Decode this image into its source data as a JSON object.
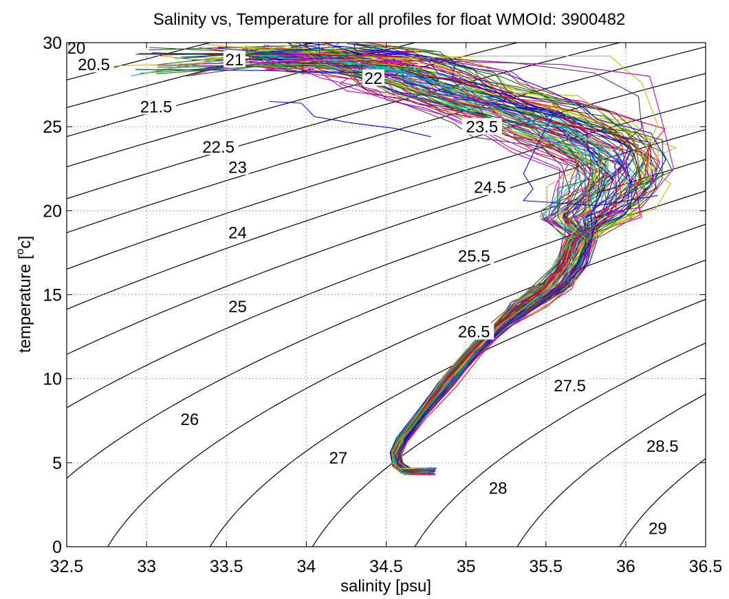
{
  "chart_data": {
    "type": "line",
    "title": "Salinity vs, Temperature for all profiles for float WMOId: 3900482",
    "xlabel": "salinity [psu]",
    "ylabel_main": "temperature [",
    "ylabel_sup": "o",
    "ylabel_end": "c]",
    "xlim": [
      32.5,
      36.5
    ],
    "ylim": [
      0,
      30
    ],
    "x_ticks": [
      "32.5",
      "33",
      "33.5",
      "34",
      "34.5",
      "35",
      "35.5",
      "36",
      "36.5"
    ],
    "y_ticks": [
      "0",
      "5",
      "10",
      "15",
      "20",
      "25",
      "30"
    ],
    "grid": true,
    "density_contours": {
      "levels": [
        20,
        20.5,
        21,
        21.5,
        22,
        22.5,
        23,
        23.5,
        24,
        24.5,
        25,
        25.5,
        26,
        26.5,
        27,
        27.5,
        28,
        28.5,
        29
      ],
      "labels": [
        {
          "text": "20",
          "s": 32.56,
          "t": 29.6
        },
        {
          "text": "20.5",
          "s": 32.67,
          "t": 28.6
        },
        {
          "text": "21",
          "s": 33.55,
          "t": 28.9
        },
        {
          "text": "21.5",
          "s": 33.06,
          "t": 26.1
        },
        {
          "text": "22",
          "s": 34.42,
          "t": 27.8
        },
        {
          "text": "22.5",
          "s": 33.45,
          "t": 23.7
        },
        {
          "text": "23",
          "s": 33.57,
          "t": 22.5
        },
        {
          "text": "23.5",
          "s": 35.1,
          "t": 24.9
        },
        {
          "text": "24",
          "s": 33.57,
          "t": 18.6
        },
        {
          "text": "24.5",
          "s": 35.15,
          "t": 21.3
        },
        {
          "text": "25",
          "s": 33.57,
          "t": 14.2
        },
        {
          "text": "25.5",
          "s": 35.05,
          "t": 17.2
        },
        {
          "text": "26",
          "s": 33.27,
          "t": 7.5
        },
        {
          "text": "26.5",
          "s": 35.05,
          "t": 12.7
        },
        {
          "text": "27",
          "s": 34.2,
          "t": 5.2
        },
        {
          "text": "27.5",
          "s": 35.65,
          "t": 9.5
        },
        {
          "text": "28",
          "s": 35.2,
          "t": 3.4
        },
        {
          "text": "28.5",
          "s": 36.23,
          "t": 5.9
        },
        {
          "text": "29",
          "s": 36.2,
          "t": 1.0
        }
      ]
    },
    "colors": [
      "#0000ff",
      "#008000",
      "#ff0000",
      "#00bfbf",
      "#bf00bf",
      "#bfbf00",
      "#404040"
    ],
    "core_path": [
      [
        34.78,
        4.5
      ],
      [
        34.62,
        4.5
      ],
      [
        34.57,
        4.9
      ],
      [
        34.56,
        5.5
      ],
      [
        34.6,
        6.4
      ],
      [
        34.72,
        7.8
      ],
      [
        34.88,
        9.7
      ],
      [
        35.05,
        11.6
      ],
      [
        35.22,
        13.2
      ],
      [
        35.4,
        14.5
      ],
      [
        35.55,
        15.5
      ],
      [
        35.65,
        16.8
      ],
      [
        35.72,
        18.3
      ],
      [
        35.76,
        19.6
      ],
      [
        35.84,
        20.7
      ],
      [
        35.94,
        21.8
      ],
      [
        35.92,
        23.0
      ],
      [
        35.78,
        24.0
      ],
      [
        35.55,
        25.1
      ],
      [
        35.28,
        26.0
      ],
      [
        35.0,
        26.8
      ],
      [
        34.75,
        27.7
      ],
      [
        34.55,
        28.5
      ],
      [
        34.3,
        29.0
      ],
      [
        34.0,
        29.3
      ],
      [
        33.8,
        29.4
      ]
    ],
    "profile_count": 90,
    "outlier_profiles": [
      {
        "color": "#0000ff",
        "points": [
          [
            33.77,
            26.5
          ],
          [
            33.97,
            26.4
          ],
          [
            34.05,
            25.6
          ],
          [
            34.3,
            25.2
          ],
          [
            34.55,
            24.9
          ],
          [
            34.78,
            24.4
          ]
        ]
      },
      {
        "color": "#0000ff",
        "points": [
          [
            32.93,
            28.4
          ],
          [
            33.7,
            28.35
          ],
          [
            34.4,
            28.2
          ],
          [
            34.9,
            27.8
          ],
          [
            35.25,
            26.9
          ],
          [
            35.55,
            25.8
          ],
          [
            35.45,
            24.0
          ],
          [
            35.36,
            22.2
          ],
          [
            35.42,
            21.3
          ],
          [
            35.36,
            20.6
          ],
          [
            35.82,
            20.3
          ],
          [
            36.2,
            20.9
          ]
        ]
      },
      {
        "color": "#404040",
        "points": [
          [
            32.93,
            29.3
          ],
          [
            33.8,
            29.3
          ],
          [
            34.6,
            29.2
          ],
          [
            35.3,
            28.8
          ],
          [
            35.8,
            28.2
          ],
          [
            36.08,
            26.8
          ],
          [
            36.1,
            24.9
          ],
          [
            35.92,
            23.5
          ]
        ]
      },
      {
        "color": "#bfbf00",
        "points": [
          [
            32.75,
            28.6
          ],
          [
            33.5,
            28.8
          ],
          [
            34.4,
            29.0
          ],
          [
            35.1,
            29.2
          ],
          [
            35.9,
            29.2
          ],
          [
            36.1,
            27.6
          ],
          [
            36.2,
            25.1
          ],
          [
            36.08,
            22.8
          ],
          [
            35.95,
            20.9
          ]
        ]
      },
      {
        "color": "#bf00bf",
        "points": [
          [
            33.2,
            28.7
          ],
          [
            34.0,
            28.9
          ],
          [
            34.9,
            28.9
          ],
          [
            35.6,
            28.7
          ],
          [
            36.15,
            28.0
          ],
          [
            36.22,
            25.6
          ],
          [
            36.3,
            22.5
          ],
          [
            36.1,
            20.2
          ],
          [
            35.88,
            19.9
          ]
        ]
      }
    ]
  }
}
